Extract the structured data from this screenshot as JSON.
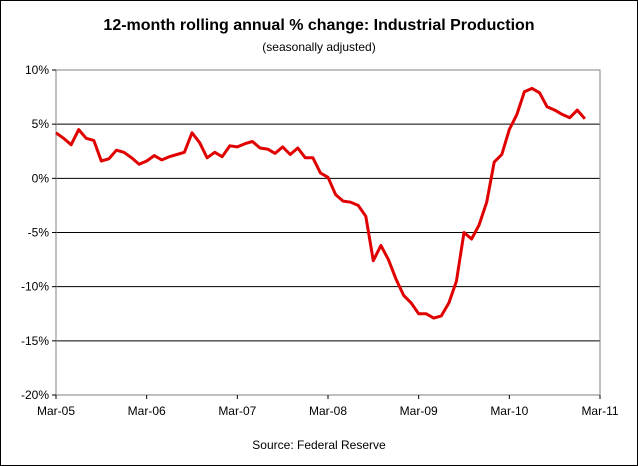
{
  "chart_data": {
    "type": "line",
    "title": "12-month rolling annual % change: Industrial Production",
    "subtitle": "(seasonally adjusted)",
    "source": "Source: Federal Reserve",
    "xlabel": "",
    "ylabel": "",
    "ylim": [
      -20,
      10
    ],
    "y_ticks": [
      10,
      5,
      0,
      -5,
      -10,
      -15,
      -20
    ],
    "y_tick_labels": [
      "10%",
      "5%",
      "0%",
      "-5%",
      "-10%",
      "-15%",
      "-20%"
    ],
    "x_ticks": [
      "2005-03",
      "2006-03",
      "2007-03",
      "2008-03",
      "2009-03",
      "2010-03",
      "2011-03"
    ],
    "x_tick_labels": [
      "Mar-05",
      "Mar-06",
      "Mar-07",
      "Mar-08",
      "Mar-09",
      "Mar-10",
      "Mar-11"
    ],
    "grid": "horizontal",
    "line_color": "#e00000",
    "series": [
      {
        "x": [
          "2005-03",
          "2005-04",
          "2005-05",
          "2005-06",
          "2005-07",
          "2005-08",
          "2005-09",
          "2005-10",
          "2005-11",
          "2005-12",
          "2006-01",
          "2006-02",
          "2006-03",
          "2006-04",
          "2006-05",
          "2006-06",
          "2006-07",
          "2006-08",
          "2006-09",
          "2006-10",
          "2006-11",
          "2006-12",
          "2007-01",
          "2007-02",
          "2007-03",
          "2007-04",
          "2007-05",
          "2007-06",
          "2007-07",
          "2007-08",
          "2007-09",
          "2007-10",
          "2007-11",
          "2007-12",
          "2008-01",
          "2008-02",
          "2008-03",
          "2008-04",
          "2008-05",
          "2008-06",
          "2008-07",
          "2008-08",
          "2008-09",
          "2008-10",
          "2008-11",
          "2008-12",
          "2009-01",
          "2009-02",
          "2009-03",
          "2009-04",
          "2009-05",
          "2009-06",
          "2009-07",
          "2009-08",
          "2009-09",
          "2009-10",
          "2009-11",
          "2009-12",
          "2010-01",
          "2010-02",
          "2010-03",
          "2010-04",
          "2010-05",
          "2010-06",
          "2010-07",
          "2010-08",
          "2010-09",
          "2010-10",
          "2010-11",
          "2010-12",
          "2011-01"
        ],
        "values": [
          4.2,
          3.7,
          3.1,
          4.5,
          3.7,
          3.5,
          1.6,
          1.8,
          2.6,
          2.4,
          1.9,
          1.3,
          1.6,
          2.1,
          1.7,
          2.0,
          2.2,
          2.4,
          4.2,
          3.3,
          1.9,
          2.4,
          2.0,
          3.0,
          2.9,
          3.2,
          3.4,
          2.8,
          2.7,
          2.3,
          2.9,
          2.2,
          2.8,
          1.9,
          1.9,
          0.5,
          0.1,
          -1.5,
          -2.1,
          -2.2,
          -2.5,
          -3.5,
          -7.6,
          -6.2,
          -7.5,
          -9.3,
          -10.8,
          -11.5,
          -12.5,
          -12.5,
          -12.9,
          -12.7,
          -11.5,
          -9.5,
          -5.0,
          -5.6,
          -4.3,
          -2.2,
          1.5,
          2.2,
          4.5,
          5.9,
          8.0,
          8.3,
          7.9,
          6.6,
          6.3,
          5.9,
          5.6,
          6.3,
          5.5
        ]
      }
    ]
  }
}
